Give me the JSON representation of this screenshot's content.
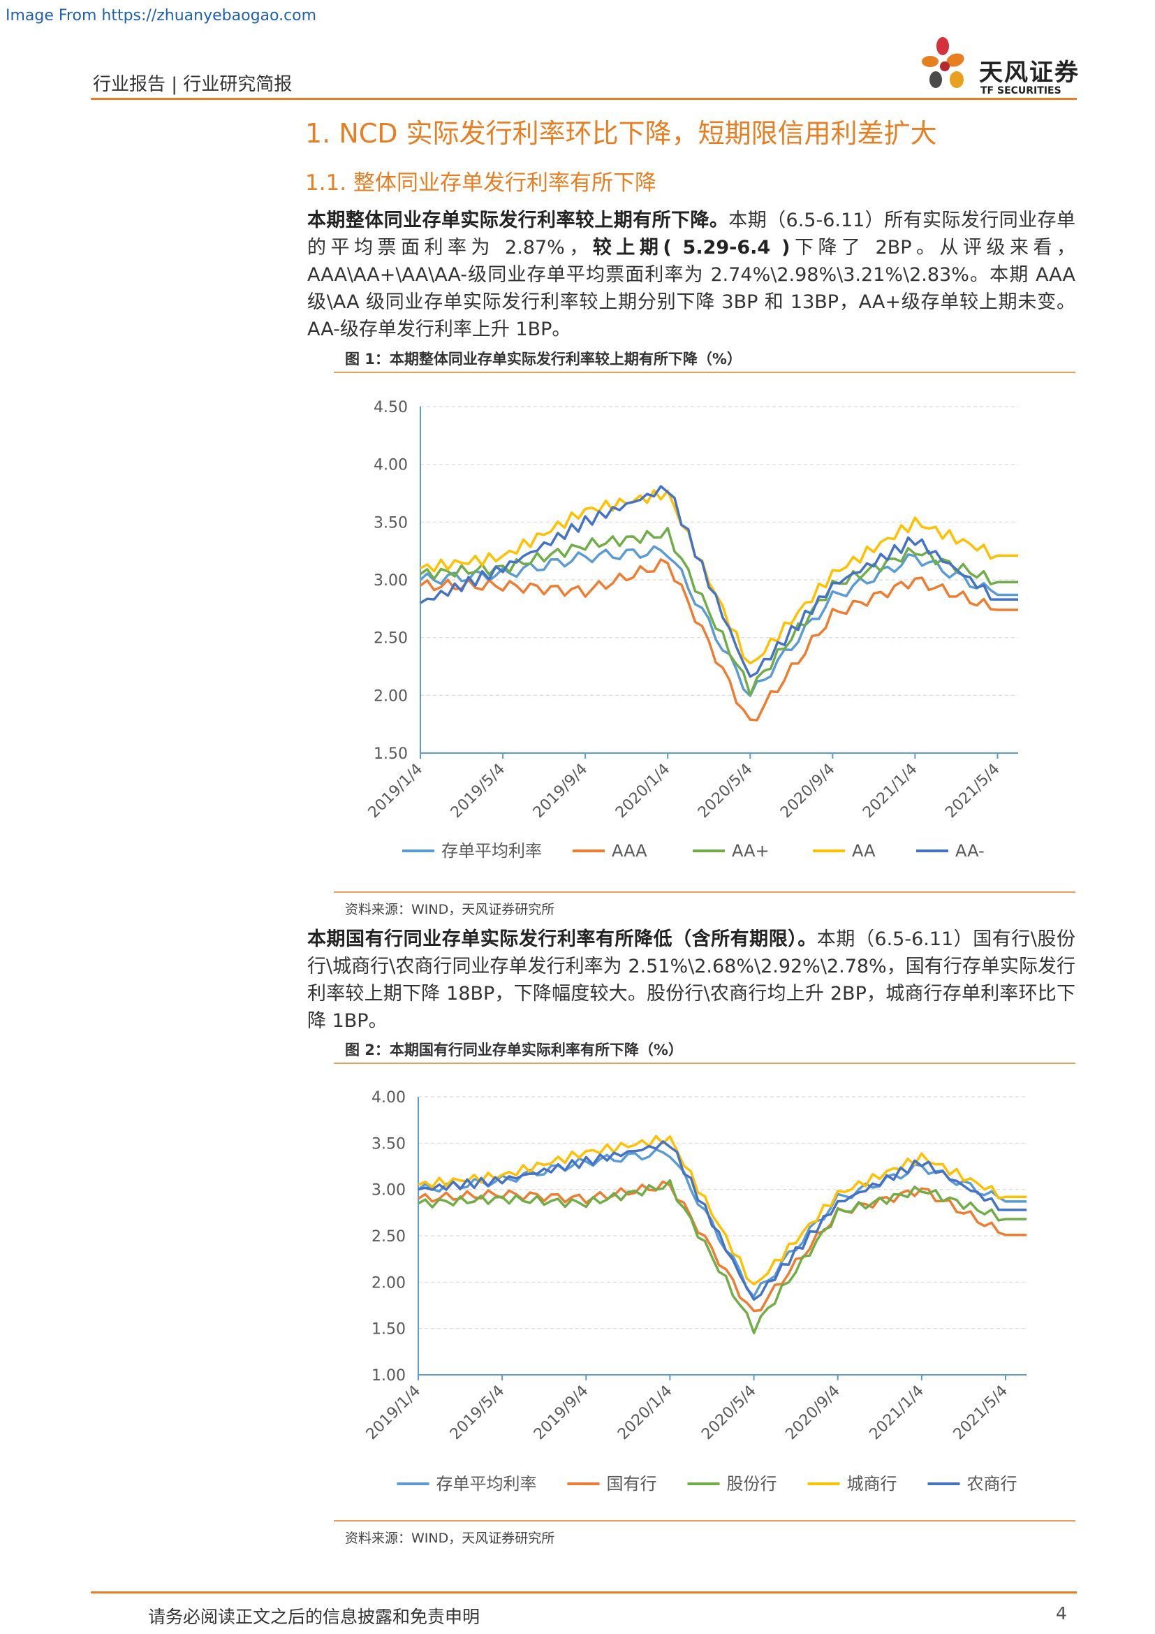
{
  "source_note": "Image From https://zhuanyebaogao.com",
  "header": {
    "text": "行业报告 | 行业研究简报"
  },
  "logo": {
    "name_cn": "天风证券",
    "name_en": "TF SECURITIES"
  },
  "heading1": "1. NCD 实际发行利率环比下降，短期限信用利差扩大",
  "heading2": "1.1. 整体同业存单发行利率有所下降",
  "para1": {
    "lead": "本期整体同业存单实际发行利率较上期有所下降。",
    "t1": "本期（6.5-6.11）所有实际发行同业存单的平均票面利率为 2.87%，",
    "b2": "较上期( 5.29-6.4 )",
    "t2": "下降了 2BP。从评级来看，AAA\\AA+\\AA\\AA-级同业存单平均票面利率为 2.74%\\2.98%\\3.21%\\2.83%。本期 AAA 级\\AA 级同业存单实际发行利率较上期分别下降 3BP 和 13BP，AA+级存单较上期未变。AA-级存单发行利率上升 1BP。"
  },
  "fig1": {
    "title": "图 1：本期整体同业存单实际发行利率较上期有所下降（%）",
    "source": "资料来源：WIND，天风证券研究所"
  },
  "para2": {
    "lead": "本期国有行同业存单实际发行利率有所降低（含所有期限）。",
    "t1": "本期（6.5-6.11）国有行\\股份行\\城商行\\农商行同业存单发行利率为 2.51%\\2.68%\\2.92%\\2.78%，国有行存单实际发行利率较上期下降 18BP，下降幅度较大。股份行\\农商行均上升 2BP，城商行存单利率环比下降 1BP。"
  },
  "fig2": {
    "title": "图 2：本期国有行同业存单实际利率有所下降（%）",
    "source": "资料来源：WIND，天风证券研究所"
  },
  "footer": {
    "text": "请务必阅读正文之后的信息披露和免责申明",
    "page": "4"
  },
  "chart_data": [
    {
      "type": "line",
      "x": [
        "2019/1/4",
        "2019/5/4",
        "2019/9/4",
        "2020/1/4",
        "2020/5/4",
        "2020/9/4",
        "2021/1/4",
        "2021/5/4"
      ],
      "ylim": [
        1.5,
        4.5
      ],
      "yticks": [
        "4.50",
        "4.00",
        "3.50",
        "3.00",
        "2.50",
        "2.00",
        "1.50"
      ],
      "grid": true,
      "legend": "bottom",
      "series": [
        {
          "name": "存单平均利率",
          "color": "#5b9bd5",
          "values": [
            3.0,
            3.05,
            3.2,
            3.25,
            2.0,
            2.85,
            3.2,
            2.87
          ],
          "final": 2.87
        },
        {
          "name": "AAA",
          "color": "#ed7d31",
          "values": [
            2.95,
            2.95,
            2.9,
            3.15,
            1.75,
            2.7,
            3.0,
            2.74
          ],
          "final": 2.74
        },
        {
          "name": "AA+",
          "color": "#70ad47",
          "values": [
            3.05,
            3.1,
            3.3,
            3.4,
            2.05,
            2.95,
            3.25,
            2.98
          ],
          "final": 2.98
        },
        {
          "name": "AA",
          "color": "#ffc000",
          "values": [
            3.1,
            3.2,
            3.6,
            3.75,
            2.25,
            3.05,
            3.5,
            3.21
          ],
          "final": 3.21
        },
        {
          "name": "AA-",
          "color": "#4472c4",
          "values": [
            2.8,
            3.1,
            3.5,
            3.8,
            2.15,
            2.95,
            3.35,
            2.83
          ],
          "final": 2.83
        }
      ]
    },
    {
      "type": "line",
      "x": [
        "2019/1/4",
        "2019/5/4",
        "2019/9/4",
        "2020/1/4",
        "2020/5/4",
        "2020/9/4",
        "2021/1/4",
        "2021/5/4"
      ],
      "ylim": [
        1.0,
        4.0
      ],
      "yticks": [
        "4.00",
        "3.50",
        "3.00",
        "2.50",
        "2.00",
        "1.50",
        "1.00"
      ],
      "grid": true,
      "legend": "bottom",
      "series": [
        {
          "name": "存单平均利率",
          "color": "#5b9bd5",
          "values": [
            3.0,
            3.1,
            3.3,
            3.4,
            1.85,
            2.9,
            3.25,
            2.87
          ],
          "final": 2.87
        },
        {
          "name": "国有行",
          "color": "#ed7d31",
          "values": [
            2.9,
            2.95,
            2.9,
            3.05,
            1.65,
            2.75,
            3.0,
            2.51
          ],
          "final": 2.51
        },
        {
          "name": "股份行",
          "color": "#70ad47",
          "values": [
            2.85,
            2.9,
            2.85,
            3.05,
            1.5,
            2.75,
            3.0,
            2.68
          ],
          "final": 2.68
        },
        {
          "name": "城商行",
          "color": "#ffc000",
          "values": [
            3.05,
            3.15,
            3.4,
            3.55,
            1.95,
            2.95,
            3.35,
            2.92
          ],
          "final": 2.92
        },
        {
          "name": "农商行",
          "color": "#4472c4",
          "values": [
            3.0,
            3.1,
            3.3,
            3.5,
            1.8,
            2.85,
            3.3,
            2.78
          ],
          "final": 2.78
        }
      ]
    }
  ]
}
